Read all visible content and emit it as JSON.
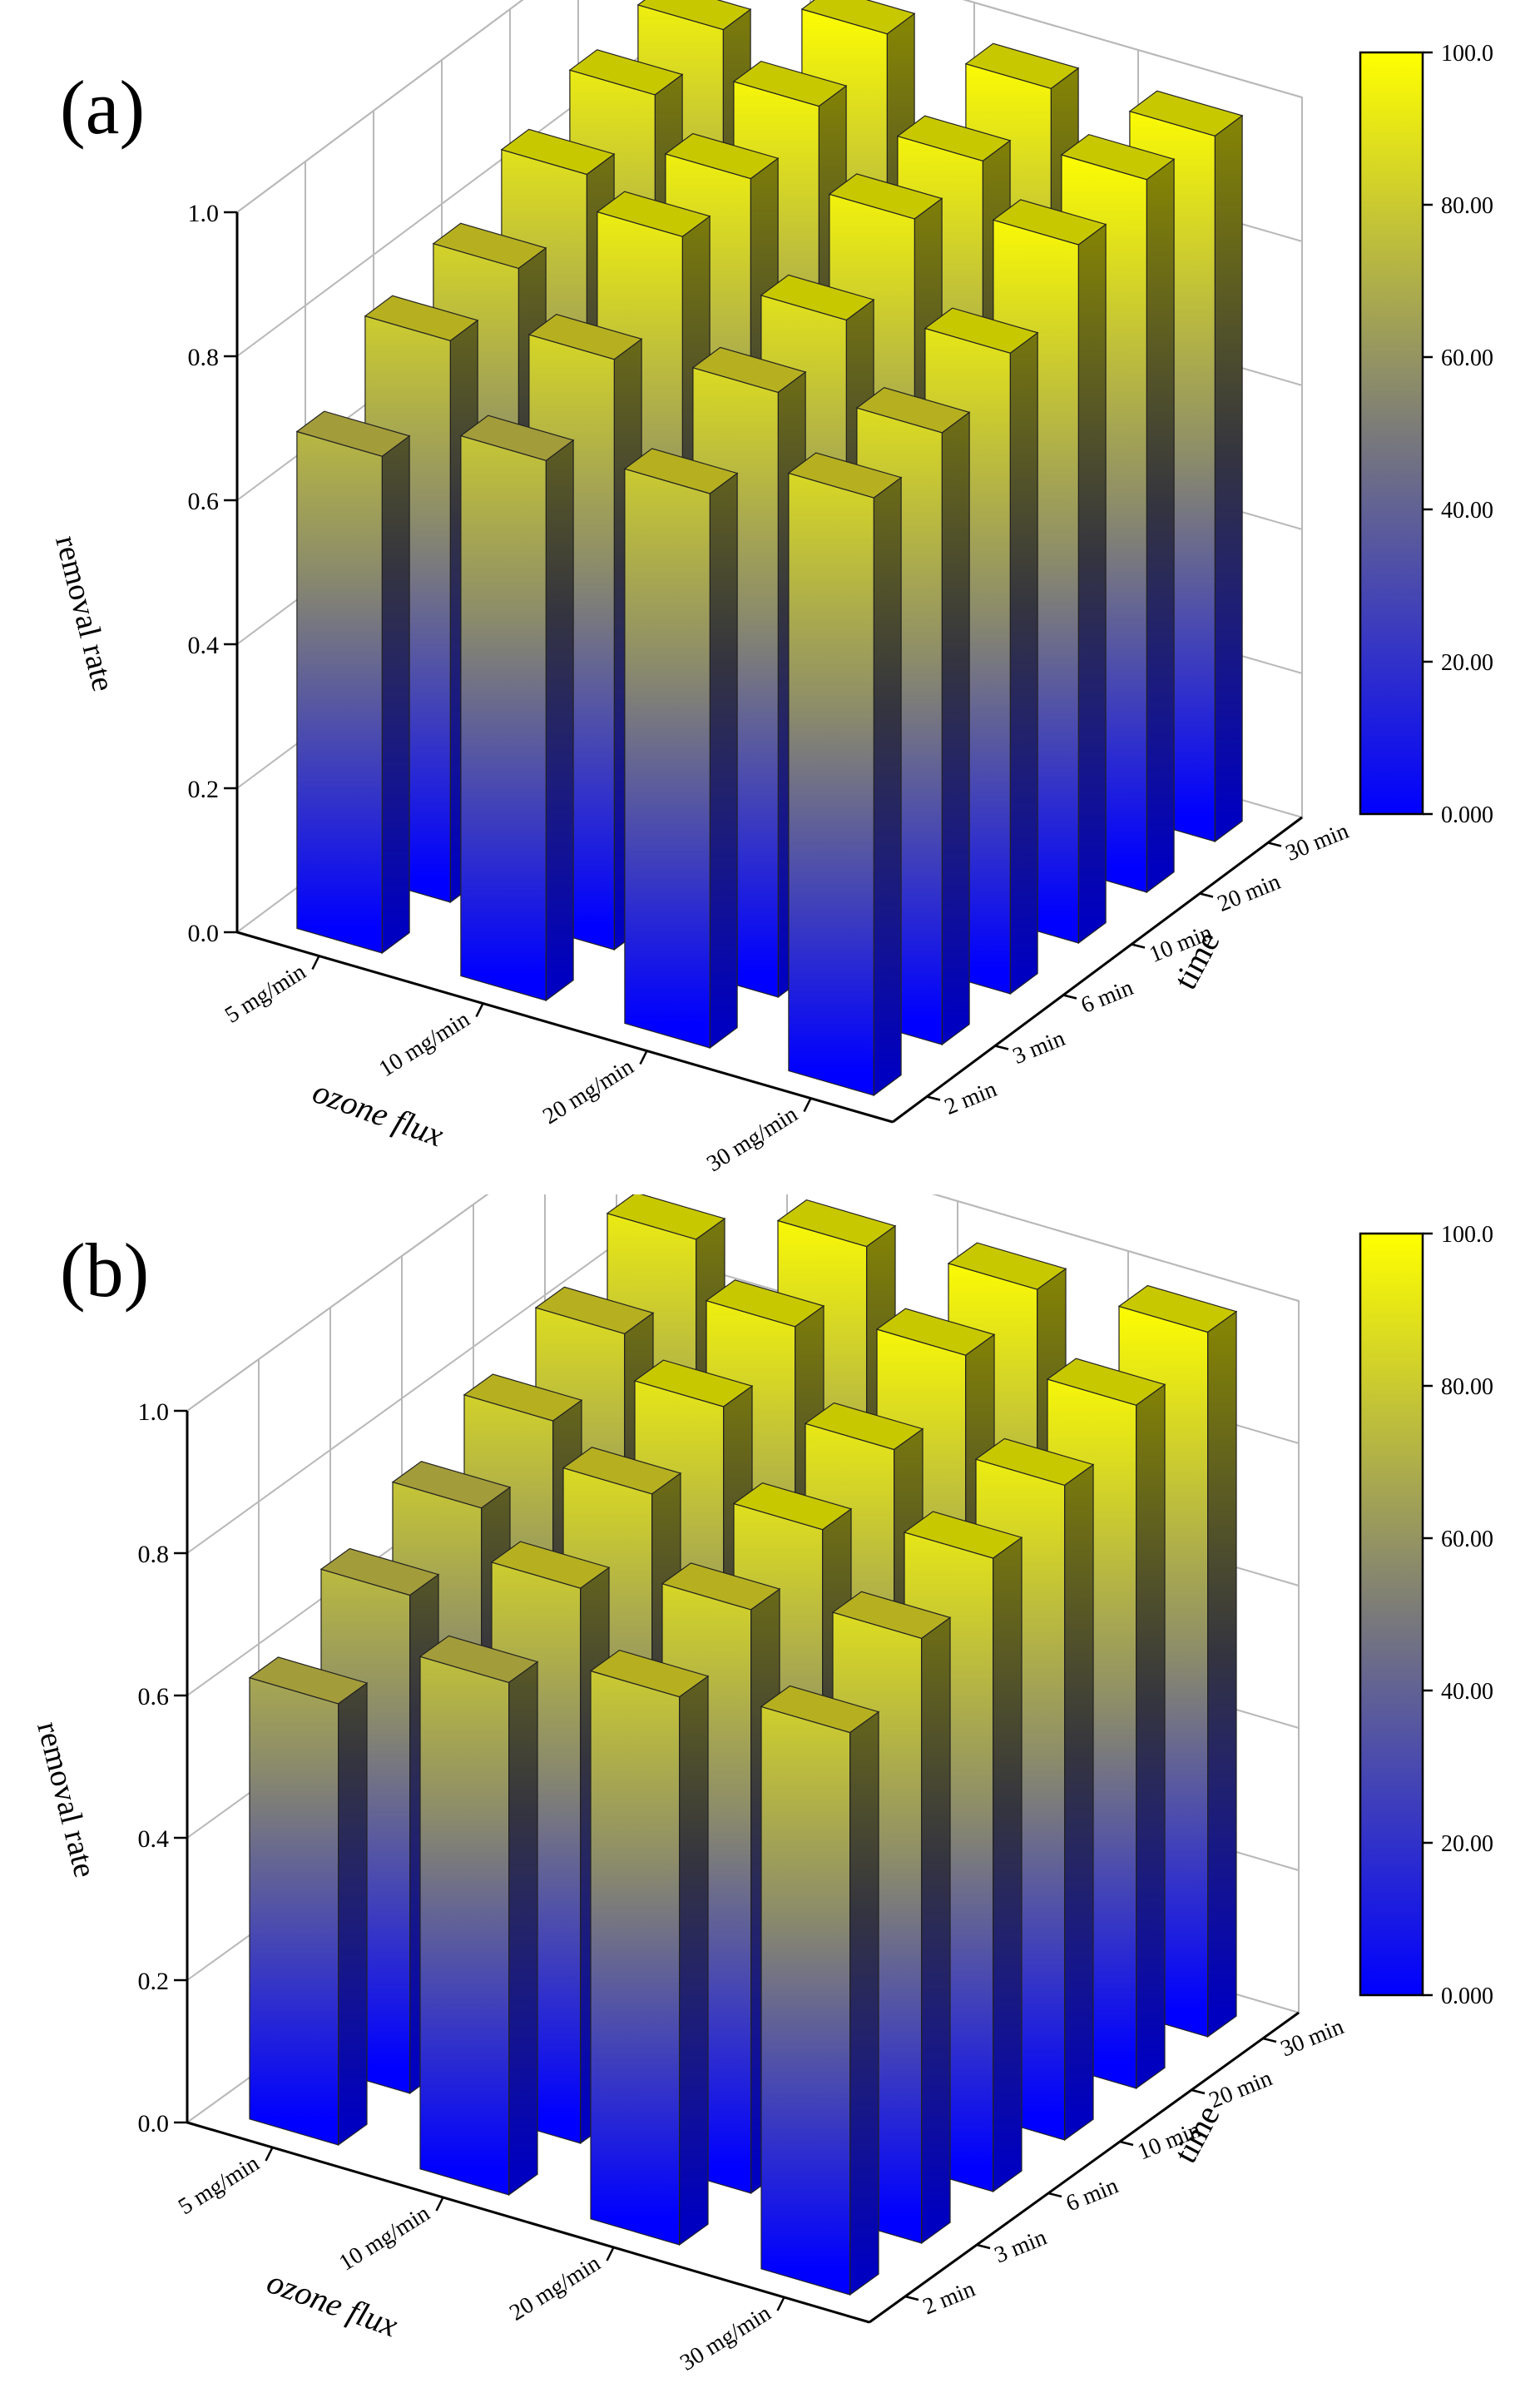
{
  "colors": {
    "low": "#0000ff",
    "mid": "#5e5e5e",
    "high": "#ffff00",
    "axis": "#000000",
    "grid": "#b8b8b8"
  },
  "chart_data": [
    {
      "type": "bar3d",
      "panel_label": "(a)",
      "ylabel": "removal rate",
      "xlabel": "ozone flux",
      "zlabel": "time",
      "ylim": [
        0,
        1
      ],
      "yticks": [
        "0.0",
        "0.2",
        "0.4",
        "0.6",
        "0.8",
        "1.0"
      ],
      "flux_categories": [
        "5 mg/min",
        "10 mg/min",
        "20 mg/min",
        "30 mg/min"
      ],
      "time_categories": [
        "2 min",
        "3 min",
        "6 min",
        "10 min",
        "20 min",
        "30 min"
      ],
      "series": [
        {
          "name": "5 mg/min",
          "values": [
            0.69,
            0.78,
            0.81,
            0.87,
            0.91,
            0.93
          ]
        },
        {
          "name": "10 mg/min",
          "values": [
            0.75,
            0.82,
            0.92,
            0.93,
            0.96,
            0.99
          ]
        },
        {
          "name": "20 mg/min",
          "values": [
            0.77,
            0.84,
            0.87,
            0.94,
            0.95,
            0.98
          ]
        },
        {
          "name": "30 mg/min",
          "values": [
            0.83,
            0.85,
            0.89,
            0.97,
            0.99,
            0.98
          ]
        }
      ],
      "colorbar": {
        "min": 0,
        "max": 100,
        "ticks": [
          "0.000",
          "20.00",
          "40.00",
          "60.00",
          "80.00",
          "100.0"
        ]
      }
    },
    {
      "type": "bar3d",
      "panel_label": "(b)",
      "ylabel": "removal rate",
      "xlabel": "ozone flux",
      "zlabel": "time",
      "ylim": [
        0,
        1
      ],
      "yticks": [
        "0.0",
        "0.2",
        "0.4",
        "0.6",
        "0.8",
        "1.0"
      ],
      "flux_categories": [
        "5 mg/min",
        "10 mg/min",
        "20 mg/min",
        "30 mg/min"
      ],
      "time_categories": [
        "2 min",
        "3 min",
        "6 min",
        "10 min",
        "20 min",
        "30 min"
      ],
      "series": [
        {
          "name": "5 mg/min",
          "values": [
            0.62,
            0.7,
            0.75,
            0.8,
            0.85,
            0.91
          ]
        },
        {
          "name": "10 mg/min",
          "values": [
            0.72,
            0.78,
            0.84,
            0.89,
            0.93,
            0.97
          ]
        },
        {
          "name": "20 mg/min",
          "values": [
            0.77,
            0.82,
            0.86,
            0.9,
            0.96,
            0.98
          ]
        },
        {
          "name": "30 mg/min",
          "values": [
            0.79,
            0.85,
            0.89,
            0.92,
            0.96,
            0.99
          ]
        }
      ],
      "colorbar": {
        "min": 0,
        "max": 100,
        "ticks": [
          "0.000",
          "20.00",
          "40.00",
          "60.00",
          "80.00",
          "100.0"
        ]
      }
    }
  ]
}
